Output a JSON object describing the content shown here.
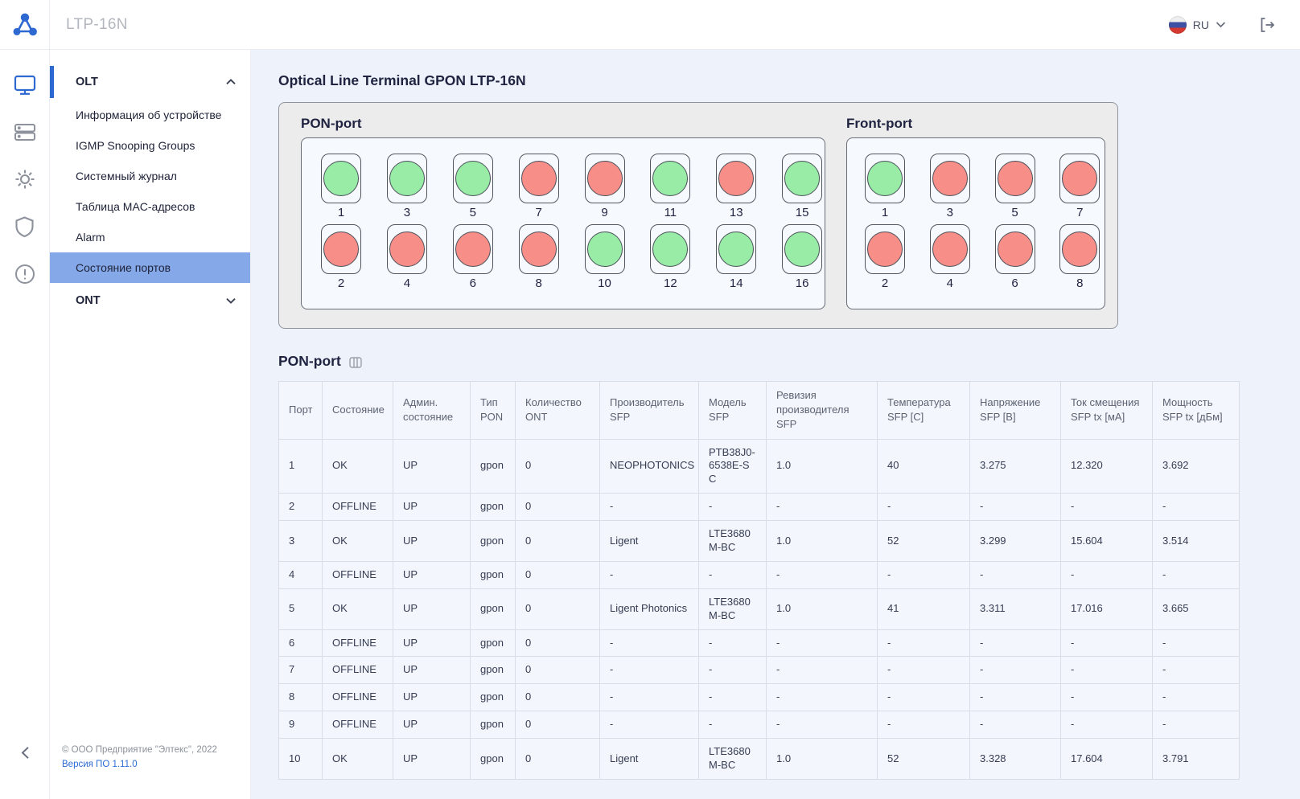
{
  "colors": {
    "accent": "#2e68d1",
    "selected": "#84a8e8",
    "ok": "#98eca6",
    "offline": "#f78f88",
    "flag_white": "#efefef",
    "flag_blue": "#3f51a3",
    "flag_red": "#d6392f"
  },
  "header": {
    "app_title": "LTP-16N",
    "language": "RU"
  },
  "rail": [
    {
      "name": "monitor-icon",
      "active": true
    },
    {
      "name": "line-cards-icon",
      "active": false
    },
    {
      "name": "settings-icon",
      "active": false
    },
    {
      "name": "shield-icon",
      "active": false
    },
    {
      "name": "alerts-icon",
      "active": false
    }
  ],
  "sidebar": {
    "sections": [
      {
        "id": "olt",
        "label": "OLT",
        "chevron": "chevron-up-icon",
        "active": true,
        "items": [
          {
            "label": "Информация об устройстве",
            "active": false
          },
          {
            "label": "IGMP Snooping Groups",
            "active": false
          },
          {
            "label": "Системный журнал",
            "active": false
          },
          {
            "label": "Таблица MAC-адресов",
            "active": false
          },
          {
            "label": "Alarm",
            "active": false
          },
          {
            "label": "Состояние портов",
            "active": true
          }
        ]
      },
      {
        "id": "ont",
        "label": "ONT",
        "chevron": "chevron-down-icon",
        "active": false,
        "items": []
      }
    ],
    "footer": {
      "copyright": "© ООО Предприятие \"Элтекс\", 2022",
      "version": "Версия ПО 1.11.0"
    }
  },
  "main": {
    "page_title": "Optical Line Terminal GPON LTP-16N",
    "pon_panel": {
      "title": "PON-port",
      "ports": [
        {
          "num": 1,
          "status": "ok"
        },
        {
          "num": 2,
          "status": "offline"
        },
        {
          "num": 3,
          "status": "ok"
        },
        {
          "num": 4,
          "status": "offline"
        },
        {
          "num": 5,
          "status": "ok"
        },
        {
          "num": 6,
          "status": "offline"
        },
        {
          "num": 7,
          "status": "offline"
        },
        {
          "num": 8,
          "status": "offline"
        },
        {
          "num": 9,
          "status": "offline"
        },
        {
          "num": 10,
          "status": "ok"
        },
        {
          "num": 11,
          "status": "ok"
        },
        {
          "num": 12,
          "status": "ok"
        },
        {
          "num": 13,
          "status": "offline"
        },
        {
          "num": 14,
          "status": "ok"
        },
        {
          "num": 15,
          "status": "ok"
        },
        {
          "num": 16,
          "status": "ok"
        }
      ]
    },
    "front_panel": {
      "title": "Front-port",
      "ports": [
        {
          "num": 1,
          "status": "ok"
        },
        {
          "num": 2,
          "status": "offline"
        },
        {
          "num": 3,
          "status": "offline"
        },
        {
          "num": 4,
          "status": "offline"
        },
        {
          "num": 5,
          "status": "offline"
        },
        {
          "num": 6,
          "status": "offline"
        },
        {
          "num": 7,
          "status": "offline"
        },
        {
          "num": 8,
          "status": "offline"
        }
      ]
    },
    "table_section": {
      "title": "PON-port",
      "columns": [
        "Порт",
        "Состояние",
        "Админ. состояние",
        "Тип PON",
        "Количество ONT",
        "Производитель SFP",
        "Модель SFP",
        "Ревизия производителя SFP",
        "Температура SFP [C]",
        "Напряжение SFP [B]",
        "Ток смещения SFP tx [мА]",
        "Мощность SFP tx [дБм]"
      ],
      "rows": [
        [
          "1",
          "OK",
          "UP",
          "gpon",
          "0",
          "NEOPHOTONICS",
          "PTB38J0-6538E-SC",
          "1.0",
          "40",
          "3.275",
          "12.320",
          "3.692"
        ],
        [
          "2",
          "OFFLINE",
          "UP",
          "gpon",
          "0",
          "-",
          "-",
          "-",
          "-",
          "-",
          "-",
          "-"
        ],
        [
          "3",
          "OK",
          "UP",
          "gpon",
          "0",
          "Ligent",
          "LTE3680M-BC",
          "1.0",
          "52",
          "3.299",
          "15.604",
          "3.514"
        ],
        [
          "4",
          "OFFLINE",
          "UP",
          "gpon",
          "0",
          "-",
          "-",
          "-",
          "-",
          "-",
          "-",
          "-"
        ],
        [
          "5",
          "OK",
          "UP",
          "gpon",
          "0",
          "Ligent Photonics",
          "LTE3680M-BC",
          "1.0",
          "41",
          "3.311",
          "17.016",
          "3.665"
        ],
        [
          "6",
          "OFFLINE",
          "UP",
          "gpon",
          "0",
          "-",
          "-",
          "-",
          "-",
          "-",
          "-",
          "-"
        ],
        [
          "7",
          "OFFLINE",
          "UP",
          "gpon",
          "0",
          "-",
          "-",
          "-",
          "-",
          "-",
          "-",
          "-"
        ],
        [
          "8",
          "OFFLINE",
          "UP",
          "gpon",
          "0",
          "-",
          "-",
          "-",
          "-",
          "-",
          "-",
          "-"
        ],
        [
          "9",
          "OFFLINE",
          "UP",
          "gpon",
          "0",
          "-",
          "-",
          "-",
          "-",
          "-",
          "-",
          "-"
        ],
        [
          "10",
          "OK",
          "UP",
          "gpon",
          "0",
          "Ligent",
          "LTE3680M-BC",
          "1.0",
          "52",
          "3.328",
          "17.604",
          "3.791"
        ]
      ]
    }
  }
}
